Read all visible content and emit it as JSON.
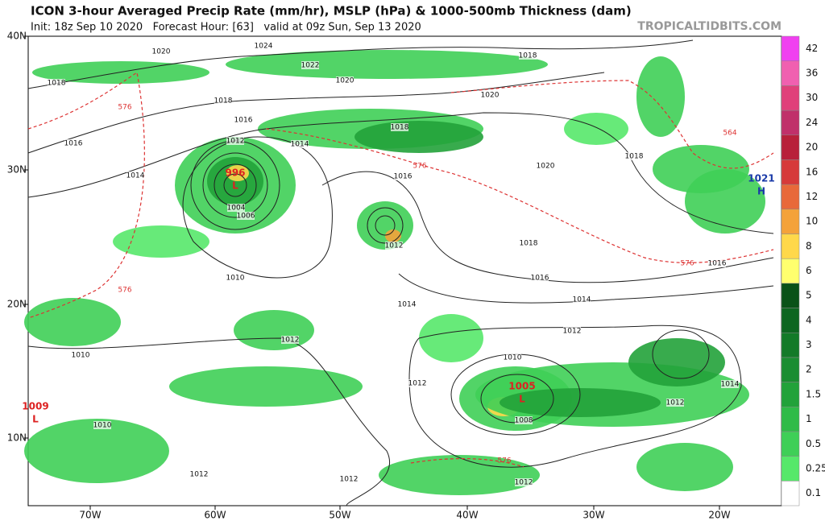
{
  "header": {
    "title": "ICON 3-hour Averaged Precip Rate (mm/hr), MSLP (hPa) & 1000-500mb Thickness (dam)",
    "subtitle": "Init: 18z Sep 10 2020   Forecast Hour: [63]   valid at 09z Sun, Sep 13 2020",
    "watermark": "TROPICALTIDBITS.COM"
  },
  "map": {
    "lat_labels": [
      "40N",
      "30N",
      "20N",
      "10N"
    ],
    "lon_labels": [
      "70W",
      "60W",
      "50W",
      "40W",
      "30W",
      "20W"
    ],
    "centers": [
      {
        "pressure": "996",
        "symbol": "L"
      },
      {
        "pressure": "1005",
        "symbol": "L"
      },
      {
        "pressure": "1009",
        "symbol": "L"
      },
      {
        "pressure": "1021",
        "symbol": "H"
      }
    ],
    "isobar_labels": [
      "1020",
      "1024",
      "1022",
      "1020",
      "1018",
      "1018",
      "1018",
      "1016",
      "1016",
      "1014",
      "1012",
      "1014",
      "1018",
      "1020",
      "1020",
      "1018",
      "1016",
      "1018",
      "1016",
      "1016",
      "1010",
      "1014",
      "1014",
      "1012",
      "1012",
      "1010",
      "1010",
      "1012",
      "1012",
      "1014",
      "1008",
      "1004",
      "1006",
      "1012",
      "1012",
      "1012",
      "1010",
      "1012"
    ],
    "thickness_labels": [
      "576",
      "576",
      "576",
      "576",
      "576",
      "564"
    ]
  },
  "colorbar": {
    "labels": [
      "0.1",
      "0.25",
      "0.5",
      "1",
      "1.5",
      "2",
      "3",
      "4",
      "5",
      "6",
      "8",
      "10",
      "12",
      "16",
      "20",
      "24",
      "30",
      "36",
      "42"
    ]
  }
}
